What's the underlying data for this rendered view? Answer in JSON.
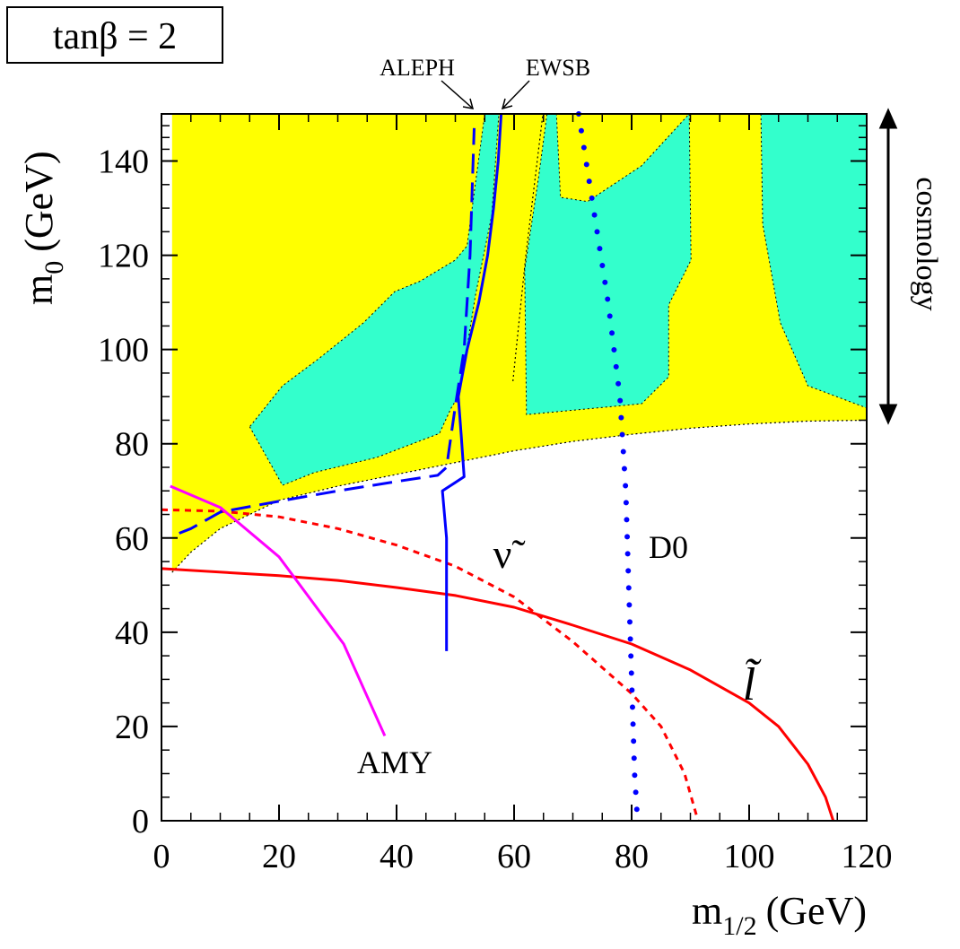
{
  "chart_data": {
    "type": "line",
    "title": "tanβ = 2",
    "xlabel": [
      "m",
      "1/2",
      "(GeV)"
    ],
    "ylabel": [
      "m",
      "0",
      "(GeV)"
    ],
    "xlim": [
      0,
      120
    ],
    "xticks": [
      0,
      20,
      40,
      60,
      80,
      100,
      120
    ],
    "ylim": [
      0,
      150
    ],
    "yticks": [
      0,
      20,
      40,
      60,
      80,
      100,
      120,
      140
    ],
    "annotations": [
      "ALEPH",
      "EWSB",
      "ν̃",
      "D0",
      "l̃",
      "AMY",
      "cosmology"
    ],
    "regions": [
      {
        "color": "#ffff00",
        "outline": false,
        "x": [
          1.8,
          5,
          10,
          20,
          30,
          40,
          50,
          60,
          70,
          80,
          90,
          100,
          110,
          120,
          120,
          1.8
        ],
        "values": [
          52.7,
          57,
          62,
          68,
          71,
          73.5,
          76,
          78.5,
          80.5,
          82,
          83.3,
          84.2,
          84.8,
          85,
          150,
          150
        ]
      },
      {
        "color": "#33ffcc",
        "outline": true,
        "x": [
          15,
          20.6,
          26,
          36.6,
          47.3,
          49.3,
          50.7,
          53.4,
          56.2,
          57.4,
          55,
          52,
          50,
          44,
          39.7,
          34.4,
          26.7,
          20.6
        ],
        "values": [
          83.6,
          71.2,
          73.9,
          77.1,
          82.2,
          87.6,
          90.4,
          111.4,
          128.5,
          150,
          150,
          122,
          119,
          114.5,
          112.3,
          105.7,
          98,
          92.3
        ]
      },
      {
        "color": "#33ffcc",
        "outline": true,
        "x": [
          65.6,
          67.2,
          67.9,
          72.5,
          81.7,
          89.8,
          90.1,
          86.3,
          86.3,
          81.7,
          62.1,
          61.8,
          64.1
        ],
        "values": [
          150,
          150,
          132.3,
          131.4,
          139,
          150,
          119,
          109.5,
          94.2,
          88.5,
          86.2,
          117,
          136
        ]
      },
      {
        "color": "#33ffcc",
        "outline": true,
        "x": [
          102,
          120,
          120,
          110,
          105.3,
          102.3
        ],
        "values": [
          150,
          150,
          87.6,
          92.3,
          105.7,
          126.6
        ]
      }
    ],
    "series": [
      {
        "color": "#000000",
        "style": "fine",
        "x": [
          1.8,
          5,
          10,
          20,
          30,
          40,
          50,
          60,
          70,
          80,
          90,
          100,
          110,
          120
        ],
        "values": [
          52.7,
          57,
          62,
          68,
          71,
          73.5,
          76,
          78.5,
          80.5,
          82,
          83.3,
          84.2,
          84.8,
          85
        ]
      },
      {
        "color": "#000000",
        "style": "fine",
        "x": [
          59.8,
          62,
          64.9
        ],
        "values": [
          93.3,
          120,
          150
        ]
      },
      {
        "color": "#ff0000",
        "style": "solid",
        "x": [
          0,
          20,
          30,
          40,
          50,
          60,
          70,
          80,
          90,
          100,
          105,
          110,
          113,
          114.3
        ],
        "values": [
          53.5,
          52,
          51,
          49.5,
          47.8,
          45.3,
          41.5,
          37.5,
          32,
          25,
          20,
          12,
          5,
          0
        ]
      },
      {
        "color": "#ff0000",
        "style": "dashed",
        "x": [
          0,
          10,
          20,
          30,
          40,
          50,
          60,
          70,
          80,
          85,
          89,
          91.3
        ],
        "values": [
          66,
          65.7,
          64.5,
          62,
          58.5,
          54,
          47.5,
          38,
          27,
          20,
          10,
          0
        ]
      },
      {
        "color": "#ff00ff",
        "style": "solid",
        "x": [
          1.5,
          10,
          20,
          31,
          38
        ],
        "values": [
          71,
          66.5,
          56,
          37.5,
          18
        ]
      },
      {
        "color": "#0000ff",
        "style": "solid",
        "x": [
          48.5,
          48.5,
          47.8,
          51.5,
          51,
          50.5,
          52,
          54,
          55.5,
          56.5,
          57.3,
          57.8
        ],
        "values": [
          36,
          60,
          70,
          73,
          82,
          90,
          100,
          110,
          120,
          130,
          140,
          150
        ]
      },
      {
        "color": "#0000ff",
        "style": "longdash",
        "x": [
          3,
          5,
          10,
          20,
          30,
          40,
          47,
          48.5,
          50,
          51.5,
          52.5,
          53.2
        ],
        "values": [
          61,
          62,
          65.5,
          67.8,
          70,
          72,
          73.3,
          75,
          88,
          100,
          120,
          147
        ]
      },
      {
        "color": "#0000ff",
        "style": "dotted",
        "x": [
          71,
          73.5,
          76,
          78,
          79,
          79.5,
          80,
          80.5,
          81
        ],
        "values": [
          150,
          130,
          110,
          90,
          70,
          50,
          30,
          10,
          0
        ]
      }
    ]
  }
}
